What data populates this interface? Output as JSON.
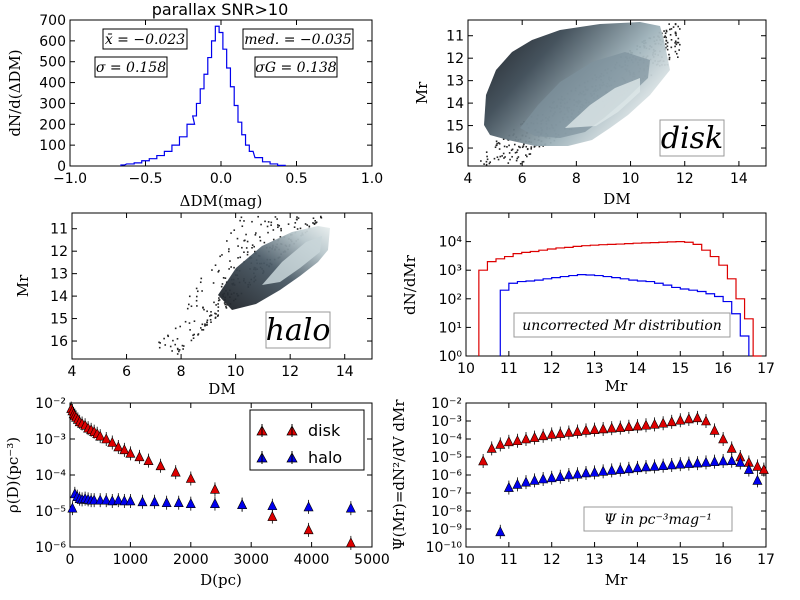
{
  "chart_data": [
    {
      "type": "line",
      "panel": "histogram",
      "title": "parallax SNR>10",
      "xlabel": "ΔDM(mag)",
      "ylabel": "dN/d(ΔDM)",
      "xlim": [
        -1.0,
        1.0
      ],
      "ylim": [
        0,
        700
      ],
      "xticks": [
        "−1.0",
        "−0.5",
        "0.0",
        "0.5",
        "1.0"
      ],
      "yticks": [
        "0",
        "100",
        "200",
        "300",
        "400",
        "500",
        "600",
        "700"
      ],
      "annotations": [
        "x̄ = −0.023",
        "med. = −0.035",
        "σ = 0.158",
        "σG = 0.138"
      ],
      "x": [
        -0.65,
        -0.6,
        -0.55,
        -0.5,
        -0.45,
        -0.4,
        -0.35,
        -0.3,
        -0.25,
        -0.2,
        -0.175,
        -0.15,
        -0.125,
        -0.1,
        -0.075,
        -0.05,
        -0.025,
        0.0,
        0.025,
        0.05,
        0.075,
        0.1,
        0.125,
        0.15,
        0.175,
        0.2,
        0.25,
        0.3,
        0.35,
        0.4
      ],
      "y": [
        5,
        10,
        15,
        25,
        35,
        50,
        70,
        100,
        140,
        200,
        240,
        300,
        370,
        440,
        520,
        600,
        670,
        640,
        560,
        470,
        380,
        290,
        210,
        150,
        100,
        70,
        40,
        20,
        10,
        3
      ],
      "color": "#0000ee"
    },
    {
      "type": "heatmap",
      "panel": "disk-density",
      "xlabel": "DM",
      "ylabel": "Mr",
      "xlim": [
        4,
        15
      ],
      "ylim": [
        16.8,
        10.3
      ],
      "xticks": [
        "4",
        "6",
        "8",
        "10",
        "12",
        "14"
      ],
      "yticks": [
        "11",
        "12",
        "13",
        "14",
        "15",
        "16"
      ],
      "label": "disk"
    },
    {
      "type": "heatmap",
      "panel": "halo-density",
      "xlabel": "DM",
      "ylabel": "Mr",
      "xlim": [
        4,
        15
      ],
      "ylim": [
        16.8,
        10.3
      ],
      "xticks": [
        "4",
        "6",
        "8",
        "10",
        "12",
        "14"
      ],
      "yticks": [
        "11",
        "12",
        "13",
        "14",
        "15",
        "16"
      ],
      "label": "halo"
    },
    {
      "type": "line",
      "panel": "uncorrected-distribution",
      "xlabel": "Mr",
      "ylabel": "dN/dMr",
      "xlim": [
        10,
        17
      ],
      "ylim": [
        1,
        100000
      ],
      "log_y": true,
      "xticks": [
        "10",
        "11",
        "12",
        "13",
        "14",
        "15",
        "16",
        "17"
      ],
      "yticks": [
        "10⁰",
        "10¹",
        "10²",
        "10³",
        "10⁴"
      ],
      "annotation": "uncorrected Mr distribution",
      "series": [
        {
          "color": "#dd0000",
          "x": [
            10.4,
            10.6,
            10.8,
            11.0,
            11.2,
            11.4,
            11.6,
            11.8,
            12.0,
            12.2,
            12.4,
            12.6,
            12.8,
            13.0,
            13.2,
            13.4,
            13.6,
            13.8,
            14.0,
            14.2,
            14.4,
            14.6,
            14.8,
            15.0,
            15.2,
            15.4,
            15.6,
            15.8,
            16.0,
            16.2,
            16.4,
            16.6,
            16.8
          ],
          "y": [
            1000,
            2000,
            2500,
            3000,
            3800,
            4200,
            4500,
            5000,
            5500,
            6000,
            6300,
            6800,
            7200,
            7500,
            7800,
            8000,
            8200,
            8500,
            8800,
            9000,
            9200,
            9500,
            9800,
            10000,
            9500,
            8000,
            5000,
            3000,
            1500,
            500,
            100,
            20,
            1
          ]
        },
        {
          "color": "#0000ee",
          "x": [
            10.9,
            11.1,
            11.3,
            11.5,
            11.7,
            11.9,
            12.1,
            12.3,
            12.5,
            12.7,
            12.9,
            13.1,
            13.3,
            13.5,
            13.7,
            13.9,
            14.1,
            14.3,
            14.5,
            14.7,
            14.9,
            15.1,
            15.3,
            15.5,
            15.7,
            15.9,
            16.1,
            16.3,
            16.5
          ],
          "y": [
            200,
            350,
            400,
            420,
            450,
            500,
            550,
            600,
            650,
            700,
            680,
            650,
            600,
            550,
            500,
            450,
            420,
            400,
            350,
            300,
            250,
            220,
            200,
            180,
            150,
            120,
            80,
            30,
            5
          ]
        }
      ]
    },
    {
      "type": "scatter",
      "panel": "density-vs-distance",
      "xlabel": "D(pc)",
      "ylabel": "ρ(D)(pc⁻³)",
      "xlim": [
        0,
        5000
      ],
      "ylim": [
        1e-06,
        0.01
      ],
      "log_y": true,
      "xticks": [
        "0",
        "1000",
        "2000",
        "3000",
        "4000",
        "5000"
      ],
      "yticks": [
        "10⁻⁶",
        "10⁻⁵",
        "10⁻⁴",
        "10⁻³",
        "10⁻²"
      ],
      "legend": [
        "disk",
        "halo"
      ],
      "legend_position": "top-right",
      "series": [
        {
          "name": "disk",
          "color": "#dd0000",
          "x": [
            20,
            40,
            60,
            80,
            100,
            130,
            160,
            200,
            250,
            300,
            350,
            400,
            450,
            500,
            600,
            700,
            800,
            900,
            1000,
            1150,
            1300,
            1500,
            1750,
            2000,
            2400,
            2850,
            3350,
            3950,
            4650
          ],
          "y": [
            0.007,
            0.006,
            0.005,
            0.0045,
            0.004,
            0.0035,
            0.003,
            0.0027,
            0.0024,
            0.002,
            0.0018,
            0.0016,
            0.0014,
            0.0012,
            0.001,
            0.0008,
            0.0006,
            0.0005,
            0.0004,
            0.00032,
            0.00025,
            0.00018,
            0.00012,
            8e-05,
            4e-05,
            1.5e-05,
            7e-06,
            3e-06,
            1.3e-06
          ]
        },
        {
          "name": "halo",
          "color": "#0000ee",
          "x": [
            40,
            80,
            120,
            160,
            200,
            250,
            300,
            350,
            400,
            500,
            600,
            700,
            800,
            900,
            1000,
            1200,
            1400,
            1600,
            1800,
            2000,
            2400,
            2850,
            3350,
            3950,
            4650
          ],
          "y": [
            1.2e-05,
            3e-05,
            2.5e-05,
            2.2e-05,
            2.1e-05,
            2.2e-05,
            2.1e-05,
            2e-05,
            2e-05,
            2e-05,
            2e-05,
            1.9e-05,
            2e-05,
            1.9e-05,
            1.9e-05,
            1.8e-05,
            1.8e-05,
            1.7e-05,
            1.7e-05,
            1.6e-05,
            1.6e-05,
            1.5e-05,
            1.4e-05,
            1.3e-05,
            1.2e-05
          ]
        }
      ]
    },
    {
      "type": "scatter",
      "panel": "luminosity-function",
      "xlabel": "Mr",
      "ylabel": "Ψ(Mr)=dN²/dV dMr",
      "xlim": [
        10,
        17
      ],
      "ylim": [
        1e-10,
        0.01
      ],
      "log_y": true,
      "xticks": [
        "10",
        "11",
        "12",
        "13",
        "14",
        "15",
        "16",
        "17"
      ],
      "yticks": [
        "10⁻¹⁰",
        "10⁻⁹",
        "10⁻⁸",
        "10⁻⁷",
        "10⁻⁶",
        "10⁻⁵",
        "10⁻⁴",
        "10⁻³",
        "10⁻²"
      ],
      "annotation": "Ψ in pc⁻³mag⁻¹",
      "series": [
        {
          "color": "#dd0000",
          "x": [
            10.4,
            10.6,
            10.8,
            11.0,
            11.2,
            11.4,
            11.6,
            11.8,
            12.0,
            12.2,
            12.4,
            12.6,
            12.8,
            13.0,
            13.2,
            13.4,
            13.6,
            13.8,
            14.0,
            14.2,
            14.4,
            14.6,
            14.8,
            15.0,
            15.2,
            15.4,
            15.6,
            15.8,
            16.0,
            16.2,
            16.4,
            16.6,
            16.8,
            16.95
          ],
          "y": [
            6e-06,
            3e-05,
            5e-05,
            7e-05,
            8e-05,
            0.0001,
            0.00012,
            0.00015,
            0.00018,
            0.0002,
            0.00023,
            0.00026,
            0.0003,
            0.00033,
            0.00036,
            0.0004,
            0.00043,
            0.00048,
            0.00052,
            0.00058,
            0.00065,
            0.00075,
            0.0009,
            0.0011,
            0.0013,
            0.0015,
            0.001,
            0.0003,
            0.0001,
            3e-05,
            1e-05,
            5e-06,
            3e-06,
            2e-06
          ]
        },
        {
          "color": "#0000ee",
          "x": [
            10.8,
            11.0,
            11.2,
            11.4,
            11.6,
            11.8,
            12.0,
            12.2,
            12.4,
            12.6,
            12.8,
            13.0,
            13.2,
            13.4,
            13.6,
            13.8,
            14.0,
            14.2,
            14.4,
            14.6,
            14.8,
            15.0,
            15.2,
            15.4,
            15.6,
            15.8,
            16.0,
            16.2,
            16.4,
            16.6,
            16.8
          ],
          "y": [
            7e-10,
            2e-07,
            3e-07,
            4e-07,
            5e-07,
            6e-07,
            7e-07,
            8e-07,
            1e-06,
            1.1e-06,
            1.3e-06,
            1.4e-06,
            1.6e-06,
            1.8e-06,
            2e-06,
            2.2e-06,
            2.5e-06,
            2.8e-06,
            3e-06,
            3.3e-06,
            3.6e-06,
            4e-06,
            4.3e-06,
            4.6e-06,
            5e-06,
            5.5e-06,
            6e-06,
            6.2e-06,
            5e-06,
            2e-06,
            5e-07
          ]
        }
      ]
    }
  ]
}
